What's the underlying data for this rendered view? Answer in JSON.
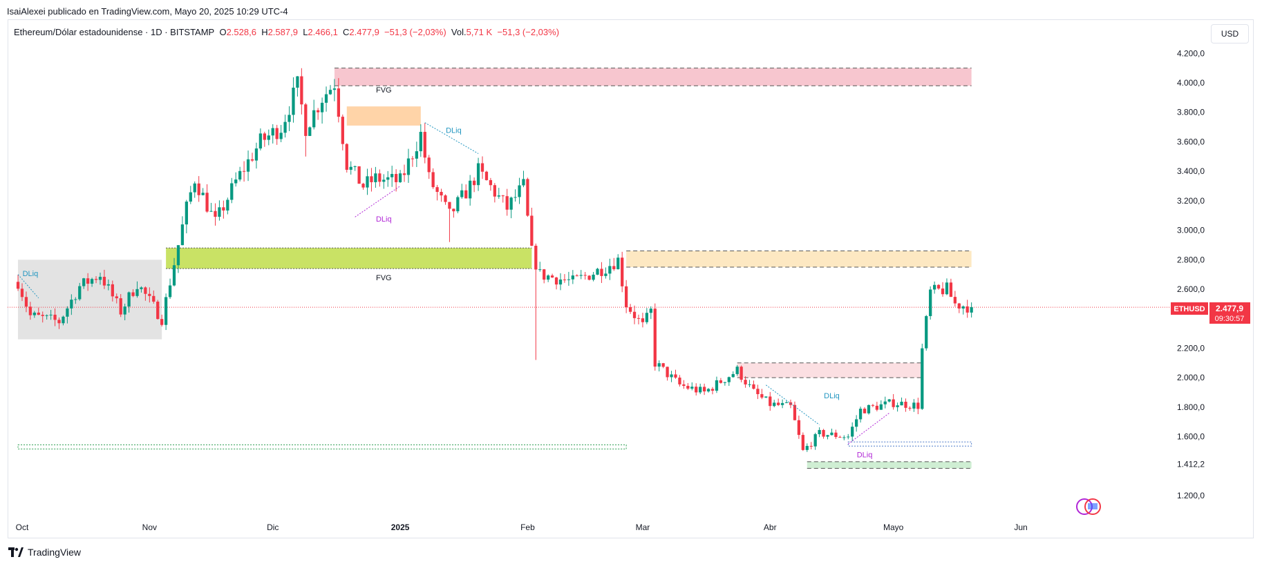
{
  "header": {
    "published": "IsaiAlexei publicado en TradingView.com, Mayo 20, 2025 10:29 UTC-4"
  },
  "legend": {
    "symbol": "Ethereum/Dólar estadounidense · 1D · BITSTAMP",
    "o_label": "O",
    "o_value": "2.528,6",
    "h_label": "H",
    "h_value": "2.587,9",
    "l_label": "L",
    "l_value": "2.466,1",
    "c_label": "C",
    "c_value": "2.477,9",
    "change": "−51,3 (−2,03%)",
    "vol_label": "Vol.",
    "vol_value": "5,71 K",
    "vol_change": "−51,3 (−2,03%)"
  },
  "currency_button": "USD",
  "price_badge": {
    "symbol": "ETHUSD",
    "price": "2.477,9",
    "countdown": "09:30:57"
  },
  "footer": {
    "brand": "TradingView"
  },
  "colors": {
    "up": "#089981",
    "down": "#f23645",
    "fvg_green": "#c9e265",
    "fvg_orange": "#ffd4a8",
    "zone_red": "#f7c6cf",
    "zone_yellow": "#fde8c2",
    "zone_pink": "#fbdfe2",
    "zone_gray": "#e3e3e3",
    "zone_light_green": "#cfeed3",
    "dliq_blue": "#2196c0",
    "dliq_purple": "#b025d6"
  },
  "chart_data": {
    "type": "candlestick",
    "y_ticks": [
      "4.200,0",
      "4.000,0",
      "3.800,0",
      "3.600,0",
      "3.400,0",
      "3.200,0",
      "3.000,0",
      "2.800,0",
      "2.600,0",
      "2.200,0",
      "2.000,0",
      "1.800,0",
      "1.600,0",
      "1.412,2",
      "1.200,0"
    ],
    "y_tick_values": [
      4200,
      4000,
      3800,
      3600,
      3400,
      3200,
      3000,
      2800,
      2600,
      2200,
      2000,
      1800,
      1600,
      1412.2,
      1200
    ],
    "x_ticks": [
      {
        "label": "Oct",
        "date": "2024-10-01"
      },
      {
        "label": "Nov",
        "date": "2024-11-01"
      },
      {
        "label": "Dic",
        "date": "2024-12-01"
      },
      {
        "label": "2025",
        "date": "2025-01-01"
      },
      {
        "label": "Feb",
        "date": "2025-02-01"
      },
      {
        "label": "Mar",
        "date": "2025-03-01"
      },
      {
        "label": "Abr",
        "date": "2025-04-01"
      },
      {
        "label": "Mayo",
        "date": "2025-05-01"
      },
      {
        "label": "Jun",
        "date": "2025-06-01"
      }
    ],
    "last_price": 2477.9,
    "anchors": [
      {
        "date": "2024-09-30",
        "price": 2650
      },
      {
        "date": "2024-10-03",
        "price": 2420
      },
      {
        "date": "2024-10-10",
        "price": 2380
      },
      {
        "date": "2024-10-15",
        "price": 2620
      },
      {
        "date": "2024-10-20",
        "price": 2700
      },
      {
        "date": "2024-10-25",
        "price": 2450
      },
      {
        "date": "2024-10-29",
        "price": 2640
      },
      {
        "date": "2024-11-04",
        "price": 2400
      },
      {
        "date": "2024-11-10",
        "price": 3150
      },
      {
        "date": "2024-11-12",
        "price": 3350
      },
      {
        "date": "2024-11-17",
        "price": 3050
      },
      {
        "date": "2024-11-22",
        "price": 3330
      },
      {
        "date": "2024-11-28",
        "price": 3600
      },
      {
        "date": "2024-12-03",
        "price": 3700
      },
      {
        "date": "2024-12-07",
        "price": 3980
      },
      {
        "date": "2024-12-09",
        "price": 3700
      },
      {
        "date": "2024-12-13",
        "price": 3900
      },
      {
        "date": "2024-12-16",
        "price": 4000
      },
      {
        "date": "2024-12-19",
        "price": 3450
      },
      {
        "date": "2024-12-23",
        "price": 3300
      },
      {
        "date": "2024-12-26",
        "price": 3350
      },
      {
        "date": "2025-01-01",
        "price": 3330
      },
      {
        "date": "2025-01-06",
        "price": 3650
      },
      {
        "date": "2025-01-08",
        "price": 3350
      },
      {
        "date": "2025-01-13",
        "price": 3100
      },
      {
        "date": "2025-01-18",
        "price": 3300
      },
      {
        "date": "2025-01-20",
        "price": 3400
      },
      {
        "date": "2025-01-27",
        "price": 3150
      },
      {
        "date": "2025-01-31",
        "price": 3300
      },
      {
        "date": "2025-02-02",
        "price": 2850
      },
      {
        "date": "2025-02-04",
        "price": 2700
      },
      {
        "date": "2025-02-12",
        "price": 2650
      },
      {
        "date": "2025-02-20",
        "price": 2750
      },
      {
        "date": "2025-02-23",
        "price": 2800
      },
      {
        "date": "2025-02-25",
        "price": 2500
      },
      {
        "date": "2025-03-01",
        "price": 2350
      },
      {
        "date": "2025-03-03",
        "price": 2450
      },
      {
        "date": "2025-03-04",
        "price": 2100
      },
      {
        "date": "2025-03-10",
        "price": 1950
      },
      {
        "date": "2025-03-16",
        "price": 1900
      },
      {
        "date": "2025-03-24",
        "price": 2050
      },
      {
        "date": "2025-03-28",
        "price": 1900
      },
      {
        "date": "2025-04-01",
        "price": 1820
      },
      {
        "date": "2025-04-06",
        "price": 1800
      },
      {
        "date": "2025-04-09",
        "price": 1500
      },
      {
        "date": "2025-04-13",
        "price": 1620
      },
      {
        "date": "2025-04-20",
        "price": 1600
      },
      {
        "date": "2025-04-23",
        "price": 1780
      },
      {
        "date": "2025-05-01",
        "price": 1830
      },
      {
        "date": "2025-05-07",
        "price": 1810
      },
      {
        "date": "2025-05-08",
        "price": 2190
      },
      {
        "date": "2025-05-10",
        "price": 2580
      },
      {
        "date": "2025-05-14",
        "price": 2600
      },
      {
        "date": "2025-05-16",
        "price": 2500
      },
      {
        "date": "2025-05-20",
        "price": 2478
      }
    ],
    "spikes": [
      {
        "date": "2025-02-03",
        "low": 2120
      },
      {
        "date": "2025-01-13",
        "low": 2920
      },
      {
        "date": "2024-12-09",
        "low": 3500
      }
    ],
    "zones": [
      {
        "name": "fvg-zone-top-red",
        "from": "2024-12-16",
        "to": "2025-05-20",
        "high": 4100,
        "low": 3980,
        "fill": "zone_red",
        "style": "dashed"
      },
      {
        "name": "fvg-zone-orange",
        "from": "2024-12-19",
        "to": "2025-01-06",
        "high": 3840,
        "low": 3710,
        "fill": "fvg_orange",
        "style": "none"
      },
      {
        "name": "fvg-zone-green",
        "from": "2024-11-05",
        "to": "2025-02-02",
        "high": 2880,
        "low": 2740,
        "fill": "fvg_green",
        "style": "dotted"
      },
      {
        "name": "zone-yellow-feb",
        "from": "2025-02-25",
        "to": "2025-05-20",
        "high": 2860,
        "low": 2750,
        "fill": "zone_yellow",
        "style": "dashed"
      },
      {
        "name": "zone-gray-oct",
        "from": "2024-09-30",
        "to": "2024-11-04",
        "high": 2800,
        "low": 2260,
        "fill": "zone_gray",
        "style": "none"
      },
      {
        "name": "zone-pink-march",
        "from": "2025-03-24",
        "to": "2025-05-08",
        "high": 2100,
        "low": 2000,
        "fill": "zone_pink",
        "style": "dashed"
      },
      {
        "name": "zone-green-low",
        "from": "2025-04-10",
        "to": "2025-05-20",
        "high": 1430,
        "low": 1385,
        "fill": "zone_light_green",
        "style": "dashed"
      }
    ],
    "levels": [
      {
        "name": "level-green-dotted-left",
        "from": "2024-09-30",
        "to": "2025-02-25",
        "price": 1530,
        "color": "#2e9e52"
      },
      {
        "name": "level-blue-dotted-right",
        "from": "2025-04-20",
        "to": "2025-05-20",
        "price": 1550,
        "color": "#4a78c8"
      }
    ],
    "labels": [
      {
        "text": "FVG",
        "date": "2024-12-28",
        "price": 3935,
        "color": "#131722"
      },
      {
        "text": "FVG",
        "date": "2024-12-28",
        "price": 2660,
        "color": "#131722"
      },
      {
        "text": "DLiq",
        "date": "2024-10-03",
        "price": 2690,
        "color": "dliq_blue"
      },
      {
        "text": "DLiq",
        "date": "2025-01-14",
        "price": 3660,
        "color": "dliq_blue"
      },
      {
        "text": "DLiq",
        "date": "2024-12-28",
        "price": 3060,
        "color": "dliq_purple"
      },
      {
        "text": "DLiq",
        "date": "2025-04-16",
        "price": 1860,
        "color": "dliq_blue"
      },
      {
        "text": "DLiq",
        "date": "2025-04-24",
        "price": 1460,
        "color": "dliq_purple"
      }
    ],
    "dliq_lines": [
      {
        "from": {
          "date": "2024-09-30",
          "price": 2700
        },
        "to": {
          "date": "2024-10-05",
          "price": 2540
        },
        "color": "dliq_blue"
      },
      {
        "from": {
          "date": "2025-01-07",
          "price": 3730
        },
        "to": {
          "date": "2025-01-20",
          "price": 3520
        },
        "color": "dliq_blue"
      },
      {
        "from": {
          "date": "2024-12-21",
          "price": 3090
        },
        "to": {
          "date": "2025-01-01",
          "price": 3300
        },
        "color": "dliq_purple"
      },
      {
        "from": {
          "date": "2025-03-31",
          "price": 1950
        },
        "to": {
          "date": "2025-04-13",
          "price": 1680
        },
        "color": "dliq_blue"
      },
      {
        "from": {
          "date": "2025-04-20",
          "price": 1550
        },
        "to": {
          "date": "2025-04-30",
          "price": 1760
        },
        "color": "dliq_purple"
      }
    ]
  }
}
